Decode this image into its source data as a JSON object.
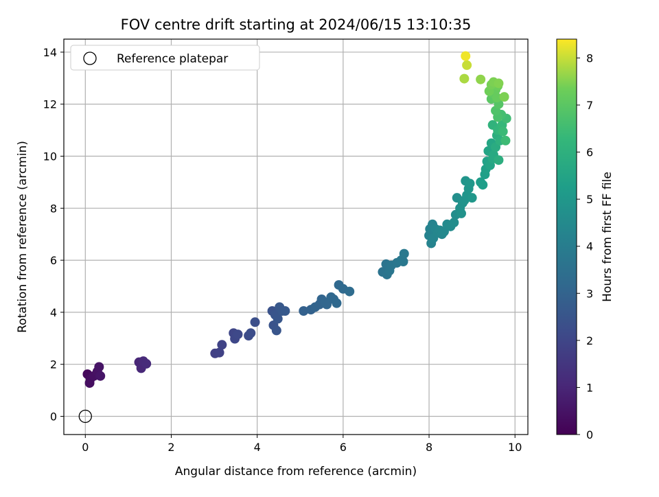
{
  "chart_data": {
    "type": "scatter",
    "title": "FOV centre drift starting at 2024/06/15 13:10:35",
    "xlabel": "Angular distance from reference (arcmin)",
    "ylabel": "Rotation from reference (arcmin)",
    "xlim": [
      -0.5,
      10.3
    ],
    "ylim": [
      -0.7,
      14.5
    ],
    "xticks": [
      "0",
      "2",
      "4",
      "6",
      "8",
      "10"
    ],
    "yticks": [
      "0",
      "2",
      "4",
      "6",
      "8",
      "10",
      "12",
      "14"
    ],
    "grid": true,
    "legend": {
      "placement": "top-left",
      "entries": [
        "Reference platepar"
      ]
    },
    "reference_point": {
      "x": 0,
      "y": 0
    },
    "colorbar": {
      "label": "Hours from first FF file",
      "range": [
        0,
        8.4
      ],
      "ticks": [
        "0",
        "1",
        "2",
        "3",
        "4",
        "5",
        "6",
        "7",
        "8"
      ],
      "colormap": "viridis"
    },
    "points": [
      {
        "x": 0.05,
        "y": 1.62,
        "c": 0.2
      },
      {
        "x": 0.12,
        "y": 1.45,
        "c": 0.3
      },
      {
        "x": 0.1,
        "y": 1.28,
        "c": 0.35
      },
      {
        "x": 0.2,
        "y": 1.55,
        "c": 0.4
      },
      {
        "x": 0.28,
        "y": 1.72,
        "c": 0.45
      },
      {
        "x": 0.32,
        "y": 1.9,
        "c": 0.5
      },
      {
        "x": 0.35,
        "y": 1.55,
        "c": 0.55
      },
      {
        "x": 1.25,
        "y": 2.08,
        "c": 1.0
      },
      {
        "x": 1.3,
        "y": 1.85,
        "c": 1.05
      },
      {
        "x": 1.35,
        "y": 2.12,
        "c": 1.1
      },
      {
        "x": 1.42,
        "y": 2.02,
        "c": 1.15
      },
      {
        "x": 3.02,
        "y": 2.42,
        "c": 1.8
      },
      {
        "x": 3.12,
        "y": 2.45,
        "c": 1.85
      },
      {
        "x": 3.18,
        "y": 2.75,
        "c": 1.9
      },
      {
        "x": 3.45,
        "y": 3.2,
        "c": 2.0
      },
      {
        "x": 3.48,
        "y": 2.98,
        "c": 2.05
      },
      {
        "x": 3.55,
        "y": 3.15,
        "c": 2.1
      },
      {
        "x": 3.8,
        "y": 3.1,
        "c": 2.2
      },
      {
        "x": 3.85,
        "y": 3.2,
        "c": 2.25
      },
      {
        "x": 3.95,
        "y": 3.62,
        "c": 2.3
      },
      {
        "x": 4.35,
        "y": 4.05,
        "c": 2.4
      },
      {
        "x": 4.38,
        "y": 3.5,
        "c": 2.45
      },
      {
        "x": 4.42,
        "y": 3.9,
        "c": 2.5
      },
      {
        "x": 4.45,
        "y": 3.3,
        "c": 2.5
      },
      {
        "x": 4.48,
        "y": 3.75,
        "c": 2.55
      },
      {
        "x": 4.52,
        "y": 4.2,
        "c": 2.6
      },
      {
        "x": 4.58,
        "y": 4.05,
        "c": 2.6
      },
      {
        "x": 4.65,
        "y": 4.05,
        "c": 2.65
      },
      {
        "x": 5.08,
        "y": 4.05,
        "c": 2.9
      },
      {
        "x": 5.25,
        "y": 4.1,
        "c": 2.95
      },
      {
        "x": 5.35,
        "y": 4.2,
        "c": 3.0
      },
      {
        "x": 5.45,
        "y": 4.3,
        "c": 3.0
      },
      {
        "x": 5.5,
        "y": 4.5,
        "c": 3.05
      },
      {
        "x": 5.58,
        "y": 4.38,
        "c": 3.1
      },
      {
        "x": 5.62,
        "y": 4.3,
        "c": 3.1
      },
      {
        "x": 5.72,
        "y": 4.58,
        "c": 3.15
      },
      {
        "x": 5.78,
        "y": 4.5,
        "c": 3.15
      },
      {
        "x": 5.85,
        "y": 4.35,
        "c": 3.2
      },
      {
        "x": 5.9,
        "y": 5.05,
        "c": 3.2
      },
      {
        "x": 6.0,
        "y": 4.9,
        "c": 3.25
      },
      {
        "x": 6.15,
        "y": 4.8,
        "c": 3.3
      },
      {
        "x": 6.92,
        "y": 5.55,
        "c": 3.6
      },
      {
        "x": 7.0,
        "y": 5.85,
        "c": 3.65
      },
      {
        "x": 7.02,
        "y": 5.45,
        "c": 3.65
      },
      {
        "x": 7.08,
        "y": 5.6,
        "c": 3.7
      },
      {
        "x": 7.12,
        "y": 5.8,
        "c": 3.7
      },
      {
        "x": 7.25,
        "y": 5.9,
        "c": 3.75
      },
      {
        "x": 7.35,
        "y": 6.0,
        "c": 3.8
      },
      {
        "x": 7.4,
        "y": 5.95,
        "c": 3.8
      },
      {
        "x": 7.42,
        "y": 6.25,
        "c": 3.85
      },
      {
        "x": 8.0,
        "y": 6.95,
        "c": 4.2
      },
      {
        "x": 8.02,
        "y": 7.2,
        "c": 4.2
      },
      {
        "x": 8.05,
        "y": 6.65,
        "c": 4.25
      },
      {
        "x": 8.08,
        "y": 7.38,
        "c": 4.25
      },
      {
        "x": 8.1,
        "y": 6.85,
        "c": 4.3
      },
      {
        "x": 8.15,
        "y": 7.2,
        "c": 4.3
      },
      {
        "x": 8.2,
        "y": 7.05,
        "c": 4.35
      },
      {
        "x": 8.25,
        "y": 7.15,
        "c": 4.4
      },
      {
        "x": 8.3,
        "y": 7.0,
        "c": 4.4
      },
      {
        "x": 8.35,
        "y": 7.1,
        "c": 4.45
      },
      {
        "x": 8.42,
        "y": 7.38,
        "c": 4.5
      },
      {
        "x": 8.5,
        "y": 7.3,
        "c": 4.55
      },
      {
        "x": 8.58,
        "y": 7.45,
        "c": 4.6
      },
      {
        "x": 8.62,
        "y": 7.75,
        "c": 4.65
      },
      {
        "x": 8.65,
        "y": 8.4,
        "c": 4.7
      },
      {
        "x": 8.72,
        "y": 8.0,
        "c": 4.75
      },
      {
        "x": 8.75,
        "y": 7.8,
        "c": 4.8
      },
      {
        "x": 8.78,
        "y": 8.2,
        "c": 4.8
      },
      {
        "x": 8.82,
        "y": 8.3,
        "c": 4.85
      },
      {
        "x": 8.85,
        "y": 9.05,
        "c": 4.9
      },
      {
        "x": 8.88,
        "y": 8.5,
        "c": 4.9
      },
      {
        "x": 8.92,
        "y": 8.75,
        "c": 4.95
      },
      {
        "x": 8.95,
        "y": 8.95,
        "c": 5.0
      },
      {
        "x": 9.0,
        "y": 8.4,
        "c": 5.0
      },
      {
        "x": 9.2,
        "y": 9.0,
        "c": 5.2
      },
      {
        "x": 9.25,
        "y": 8.9,
        "c": 5.25
      },
      {
        "x": 9.3,
        "y": 9.3,
        "c": 5.3
      },
      {
        "x": 9.32,
        "y": 9.5,
        "c": 5.35
      },
      {
        "x": 9.35,
        "y": 9.8,
        "c": 5.4
      },
      {
        "x": 9.38,
        "y": 10.2,
        "c": 5.5
      },
      {
        "x": 9.42,
        "y": 9.65,
        "c": 5.5
      },
      {
        "x": 9.45,
        "y": 10.5,
        "c": 5.6
      },
      {
        "x": 9.48,
        "y": 9.9,
        "c": 5.65
      },
      {
        "x": 9.5,
        "y": 10.05,
        "c": 5.7
      },
      {
        "x": 9.55,
        "y": 10.35,
        "c": 5.8
      },
      {
        "x": 9.58,
        "y": 10.8,
        "c": 5.9
      },
      {
        "x": 9.62,
        "y": 9.85,
        "c": 5.9
      },
      {
        "x": 9.65,
        "y": 10.6,
        "c": 6.0
      },
      {
        "x": 9.48,
        "y": 11.2,
        "c": 6.1
      },
      {
        "x": 9.6,
        "y": 11.0,
        "c": 6.2
      },
      {
        "x": 9.7,
        "y": 11.2,
        "c": 6.3
      },
      {
        "x": 9.72,
        "y": 10.95,
        "c": 6.4
      },
      {
        "x": 9.78,
        "y": 10.6,
        "c": 6.45
      },
      {
        "x": 9.8,
        "y": 11.45,
        "c": 6.5
      },
      {
        "x": 9.68,
        "y": 11.6,
        "c": 6.6
      },
      {
        "x": 9.6,
        "y": 11.5,
        "c": 6.7
      },
      {
        "x": 9.55,
        "y": 11.75,
        "c": 6.8
      },
      {
        "x": 9.62,
        "y": 12.0,
        "c": 6.9
      },
      {
        "x": 9.45,
        "y": 12.2,
        "c": 7.0
      },
      {
        "x": 9.5,
        "y": 12.4,
        "c": 7.1
      },
      {
        "x": 9.55,
        "y": 12.55,
        "c": 7.2
      },
      {
        "x": 9.58,
        "y": 12.25,
        "c": 7.2
      },
      {
        "x": 9.6,
        "y": 12.7,
        "c": 7.3
      },
      {
        "x": 9.4,
        "y": 12.5,
        "c": 7.35
      },
      {
        "x": 9.45,
        "y": 12.75,
        "c": 7.4
      },
      {
        "x": 9.5,
        "y": 12.85,
        "c": 7.45
      },
      {
        "x": 9.62,
        "y": 12.8,
        "c": 7.5
      },
      {
        "x": 9.75,
        "y": 12.28,
        "c": 7.45
      },
      {
        "x": 9.2,
        "y": 12.95,
        "c": 7.6
      },
      {
        "x": 8.82,
        "y": 12.98,
        "c": 7.8
      },
      {
        "x": 8.88,
        "y": 13.5,
        "c": 8.0
      },
      {
        "x": 8.85,
        "y": 13.85,
        "c": 8.3
      }
    ]
  }
}
